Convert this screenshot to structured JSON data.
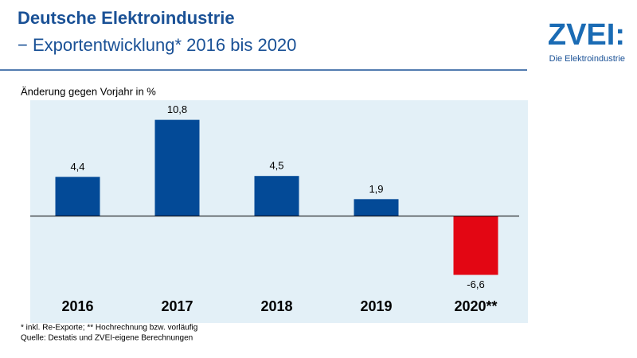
{
  "chart_data": {
    "type": "bar",
    "title": "Deutsche Elektroindustrie",
    "subtitle": "− Exportentwicklung* 2016 bis 2020",
    "y_label": "Änderung gegen Vorjahr in %",
    "categories": [
      "2016",
      "2017",
      "2018",
      "2019",
      "2020**"
    ],
    "values": [
      4.4,
      10.8,
      4.5,
      1.9,
      -6.6
    ],
    "value_labels": [
      "4,4",
      "10,8",
      "4,5",
      "1,9",
      "-6,6"
    ],
    "colors": [
      "#034a97",
      "#034a97",
      "#034a97",
      "#034a97",
      "#e30613"
    ],
    "ylim": [
      -7,
      13
    ],
    "footnotes": [
      "* inkl. Re-Exporte; ** Hochrechnung bzw. vorläufig",
      "Quelle: Destatis und ZVEI-eigene Berechnungen"
    ]
  },
  "logo": {
    "name": "ZVEI:",
    "tagline": "Die Elektroindustrie"
  }
}
